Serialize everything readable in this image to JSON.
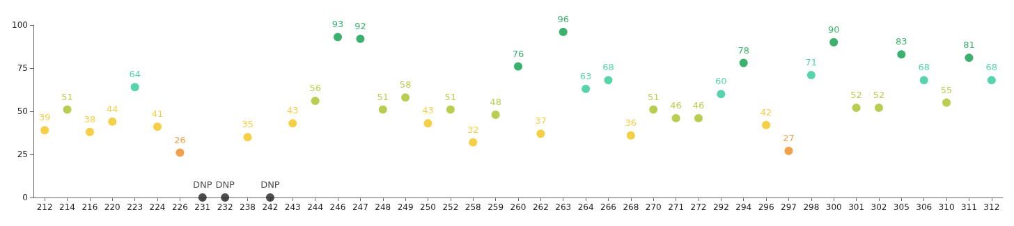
{
  "chart_data": {
    "type": "scatter",
    "categories": [
      "212",
      "214",
      "216",
      "220",
      "223",
      "224",
      "226",
      "231",
      "232",
      "238",
      "242",
      "243",
      "244",
      "246",
      "247",
      "248",
      "249",
      "250",
      "252",
      "258",
      "259",
      "260",
      "262",
      "263",
      "264",
      "266",
      "268",
      "270",
      "271",
      "272",
      "292",
      "294",
      "296",
      "297",
      "298",
      "300",
      "301",
      "302",
      "305",
      "306",
      "310",
      "311",
      "312"
    ],
    "values": [
      39,
      51,
      38,
      44,
      64,
      41,
      26,
      0,
      0,
      35,
      0,
      43,
      56,
      93,
      92,
      51,
      58,
      43,
      51,
      32,
      48,
      76,
      37,
      96,
      63,
      68,
      36,
      51,
      46,
      46,
      60,
      78,
      42,
      27,
      71,
      90,
      52,
      52,
      83,
      68,
      55,
      81,
      68
    ],
    "value_labels": [
      "39",
      "51",
      "38",
      "44",
      "64",
      "41",
      "26",
      "DNP",
      "DNP",
      "35",
      "DNP",
      "43",
      "56",
      "93",
      "92",
      "51",
      "58",
      "43",
      "51",
      "32",
      "48",
      "76",
      "37",
      "96",
      "63",
      "68",
      "36",
      "51",
      "46",
      "46",
      "60",
      "78",
      "42",
      "27",
      "71",
      "90",
      "52",
      "52",
      "83",
      "68",
      "55",
      "81",
      "68"
    ],
    "colors": [
      "#f2c318",
      "#a8c225",
      "#f2c318",
      "#f2c318",
      "#2ec992",
      "#f2c318",
      "#ee8a1f",
      "#222222",
      "#222222",
      "#f2c318",
      "#222222",
      "#f2c318",
      "#a8c225",
      "#0a9e48",
      "#0a9e48",
      "#a8c225",
      "#a8c225",
      "#f2c318",
      "#a8c225",
      "#f2c318",
      "#a8c225",
      "#0a9e48",
      "#f2c318",
      "#0a9e48",
      "#2ec992",
      "#2ec992",
      "#f2c318",
      "#a8c225",
      "#a8c225",
      "#a8c225",
      "#2ec992",
      "#0a9e48",
      "#f2c318",
      "#ee8a1f",
      "#2ec992",
      "#0a9e48",
      "#a8c225",
      "#a8c225",
      "#0a9e48",
      "#2ec992",
      "#a8c225",
      "#0a9e48",
      "#2ec992"
    ],
    "ylim": [
      0,
      100
    ],
    "yticks": [
      0,
      25,
      50,
      75,
      100
    ],
    "marker": "circle"
  }
}
